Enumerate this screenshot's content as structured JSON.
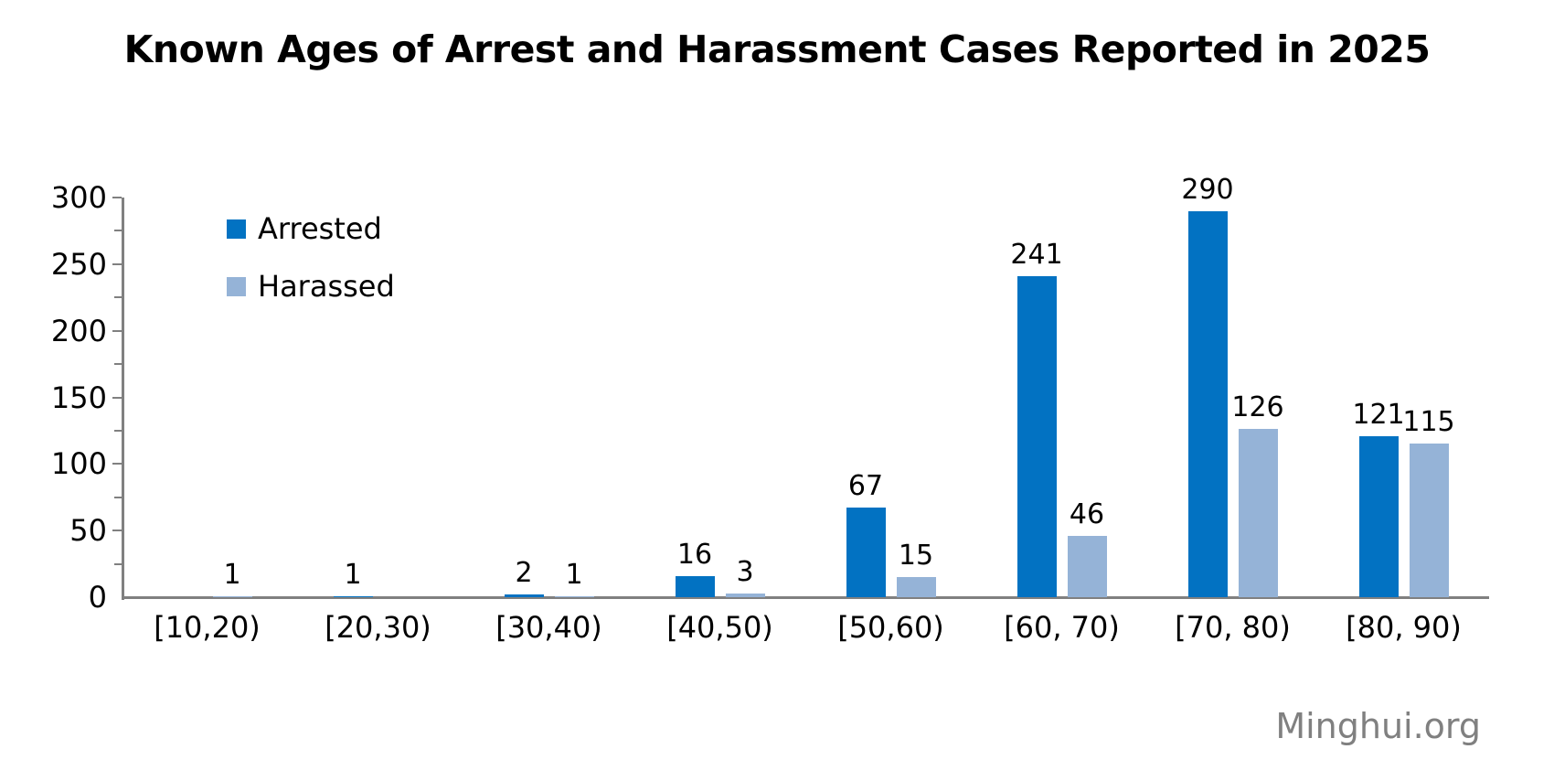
{
  "title": "Known Ages of Arrest and Harassment Cases Reported in 2025",
  "watermark": "Minghui.org",
  "colors": {
    "arrested": "#0272c2",
    "harassed": "#95b3d7",
    "axis": "#808080",
    "text": "#000000",
    "watermark": "#808080"
  },
  "chart_data": {
    "type": "bar",
    "title": "Known Ages of Arrest and Harassment Cases Reported in 2025",
    "categories": [
      "[10,20)",
      "[20,30)",
      "[30,40)",
      "[40,50)",
      "[50,60)",
      "[60, 70)",
      "[70, 80)",
      "[80, 90)"
    ],
    "series": [
      {
        "name": "Arrested",
        "color_key": "arrested",
        "values": [
          null,
          1,
          2,
          16,
          67,
          241,
          290,
          121
        ]
      },
      {
        "name": "Harassed",
        "color_key": "harassed",
        "values": [
          1,
          null,
          1,
          3,
          15,
          46,
          126,
          115
        ]
      }
    ],
    "data_labels_shown": true,
    "xlabel": "",
    "ylabel": "",
    "ylim": [
      0,
      300
    ],
    "yticks": [
      0,
      50,
      100,
      150,
      200,
      250,
      300
    ],
    "yminor_step": 25,
    "grid": false,
    "legend_position": "top-left",
    "legend": [
      "Arrested",
      "Harassed"
    ]
  }
}
